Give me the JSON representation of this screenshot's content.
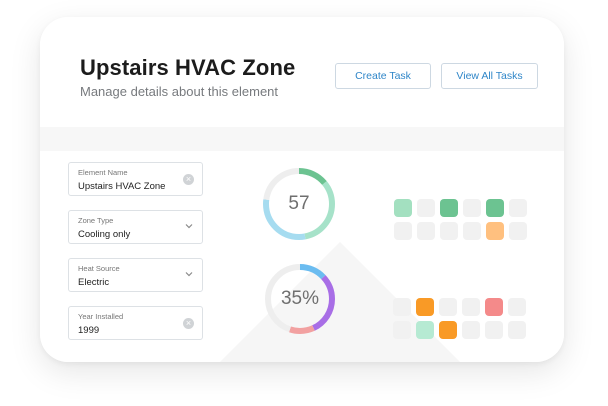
{
  "header": {
    "title": "Upstairs HVAC Zone",
    "subtitle": "Manage details about this element",
    "create_task_label": "Create Task",
    "view_all_tasks_label": "View All Tasks"
  },
  "form": {
    "fields": [
      {
        "label": "Element Name",
        "value": "Upstairs HVAC Zone",
        "control": "clear"
      },
      {
        "label": "Zone Type",
        "value": "Cooling only",
        "control": "dropdown"
      },
      {
        "label": "Heat Source",
        "value": "Electric",
        "control": "dropdown"
      },
      {
        "label": "Year Installed",
        "value": "1999",
        "control": "clear"
      }
    ]
  },
  "gauges": [
    {
      "label": "57",
      "segments": [
        {
          "fraction": 0.14,
          "color": "#6cc391"
        },
        {
          "fraction": 0.33,
          "color": "#a6e2c9"
        },
        {
          "fraction": 0.3,
          "color": "#a6dcf0"
        },
        {
          "fraction": 0.23,
          "color": "#eeeeee"
        }
      ]
    },
    {
      "label": "35%",
      "segments": [
        {
          "fraction": 0.13,
          "color": "#6bbcf0"
        },
        {
          "fraction": 0.3,
          "color": "#a86ee6"
        },
        {
          "fraction": 0.12,
          "color": "#f2a1a1"
        },
        {
          "fraction": 0.45,
          "color": "#eeeeee"
        }
      ]
    }
  ],
  "heatmaps": [
    {
      "cells": [
        [
          "#a3e0c0",
          "#f1f1f1",
          "#6cc391",
          "#f1f1f1",
          "#6cc391",
          "#f1f1f1"
        ],
        [
          "#f1f1f1",
          "#f1f1f1",
          "#f1f1f1",
          "#f1f1f1",
          "#ffc07f",
          "#f1f1f1"
        ]
      ]
    },
    {
      "cells": [
        [
          "#f1f1f1",
          "#f99a26",
          "#f1f1f1",
          "#f1f1f1",
          "#f48a8a",
          "#f1f1f1"
        ],
        [
          "#f1f1f1",
          "#b6ead3",
          "#f99a26",
          "#f1f1f1",
          "#f1f1f1",
          "#f1f1f1"
        ]
      ]
    }
  ],
  "colors": {
    "accent": "#2f86c8",
    "title": "#1c1c1c",
    "subtitle": "#777a7e"
  }
}
